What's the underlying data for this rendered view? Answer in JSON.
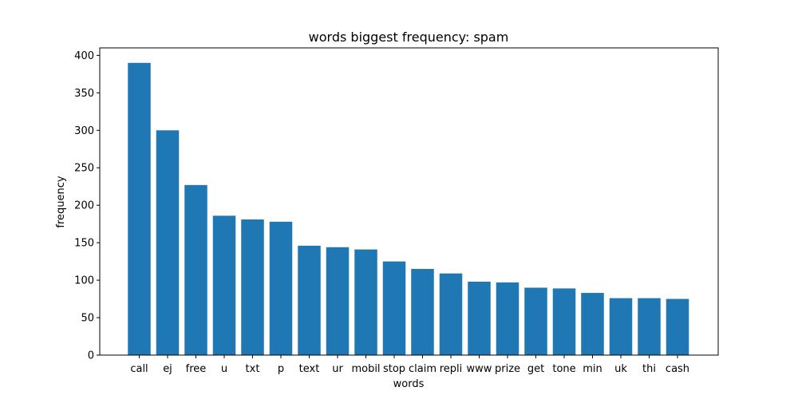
{
  "chart_data": {
    "type": "bar",
    "title": "words biggest frequency: spam",
    "xlabel": "words",
    "ylabel": "frequency",
    "categories": [
      "call",
      "ej",
      "free",
      "u",
      "txt",
      "p",
      "text",
      "ur",
      "mobil",
      "stop",
      "claim",
      "repli",
      "www",
      "prize",
      "get",
      "tone",
      "min",
      "uk",
      "thi",
      "cash"
    ],
    "values": [
      390,
      300,
      227,
      186,
      181,
      178,
      146,
      144,
      141,
      125,
      115,
      109,
      98,
      97,
      90,
      89,
      83,
      76,
      76,
      75
    ],
    "ylim": [
      0,
      410
    ],
    "yticks": [
      0,
      50,
      100,
      150,
      200,
      250,
      300,
      350,
      400
    ],
    "bar_color": "#1f77b4",
    "grid": false,
    "legend": "none"
  }
}
